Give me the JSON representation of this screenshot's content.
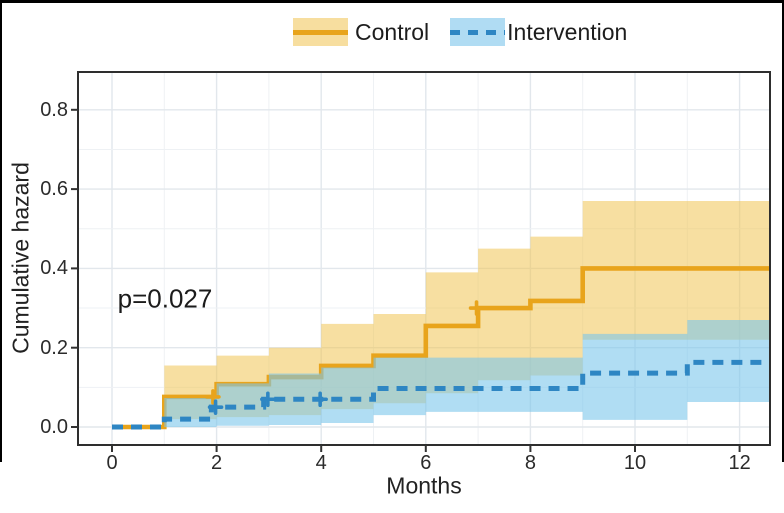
{
  "legend": {
    "items": [
      {
        "label": "Control",
        "line_style": "solid",
        "line_color": "#E8A41C",
        "swatch_color": "#F7DE9F"
      },
      {
        "label": "Intervention",
        "line_style": "dashed",
        "line_color": "#2E86C3",
        "swatch_color": "#B0DCF3"
      }
    ]
  },
  "annotation": {
    "text": "p=0.027"
  },
  "x_axis": {
    "title": "Months",
    "tick_labels": [
      "0",
      "2",
      "4",
      "6",
      "8",
      "10",
      "12"
    ]
  },
  "y_axis": {
    "title": "Cumulative hazard",
    "tick_labels": [
      "0.0",
      "0.2",
      "0.4",
      "0.6",
      "0.8"
    ]
  },
  "chart_data": {
    "type": "line",
    "subtype": "step-function-cumulative-hazard",
    "title": "",
    "xlabel": "Months",
    "ylabel": "Cumulative hazard",
    "xlim": [
      -0.65,
      12.58
    ],
    "ylim": [
      -0.045,
      0.895
    ],
    "x_ticks": [
      0,
      2,
      4,
      6,
      8,
      10,
      12
    ],
    "y_ticks": [
      0,
      0.2,
      0.4,
      0.6,
      0.8
    ],
    "grid": true,
    "legend_position": "top-center",
    "annotation": {
      "text": "p=0.027",
      "x": 1.0,
      "y": 0.32
    },
    "series": [
      {
        "name": "Control",
        "line": "solid",
        "color": "#E8A41C",
        "band_color": "rgba(240,196,83,0.55)",
        "steps": [
          [
            0,
            0
          ],
          [
            1,
            0.076
          ],
          [
            2,
            0.108
          ],
          [
            3,
            0.126
          ],
          [
            4,
            0.154
          ],
          [
            5,
            0.18
          ],
          [
            6,
            0.255
          ],
          [
            7,
            0.3
          ],
          [
            8,
            0.318
          ],
          [
            9,
            0.4
          ]
        ],
        "band": [
          [
            1,
            0.02,
            0.155
          ],
          [
            2,
            0.025,
            0.18
          ],
          [
            3,
            0.03,
            0.2
          ],
          [
            4,
            0.045,
            0.26
          ],
          [
            5,
            0.06,
            0.285
          ],
          [
            6,
            0.085,
            0.39
          ],
          [
            7,
            0.118,
            0.45
          ],
          [
            8,
            0.13,
            0.48
          ],
          [
            9,
            0.22,
            0.57
          ]
        ],
        "censor_marks": [
          [
            1.93,
            0.076
          ],
          [
            6.97,
            0.3
          ]
        ]
      },
      {
        "name": "Intervention",
        "line": "dashed",
        "color": "#2E86C3",
        "band_color": "rgba(123,198,235,0.6)",
        "steps": [
          [
            0,
            0
          ],
          [
            1,
            0.02
          ],
          [
            1.9,
            0.05
          ],
          [
            2.9,
            0.07
          ],
          [
            5,
            0.097
          ],
          [
            9,
            0.136
          ],
          [
            11,
            0.163
          ]
        ],
        "band": [
          [
            1,
            0,
            0.073
          ],
          [
            2,
            0.003,
            0.11
          ],
          [
            3,
            0.005,
            0.135
          ],
          [
            4,
            0.01,
            0.15
          ],
          [
            5,
            0.03,
            0.175
          ],
          [
            6,
            0.038,
            0.175
          ],
          [
            9,
            0.018,
            0.235
          ],
          [
            11,
            0.063,
            0.27
          ]
        ],
        "censor_marks": [
          [
            1.98,
            0.05
          ],
          [
            2.98,
            0.07
          ],
          [
            3.98,
            0.07
          ]
        ]
      }
    ]
  }
}
